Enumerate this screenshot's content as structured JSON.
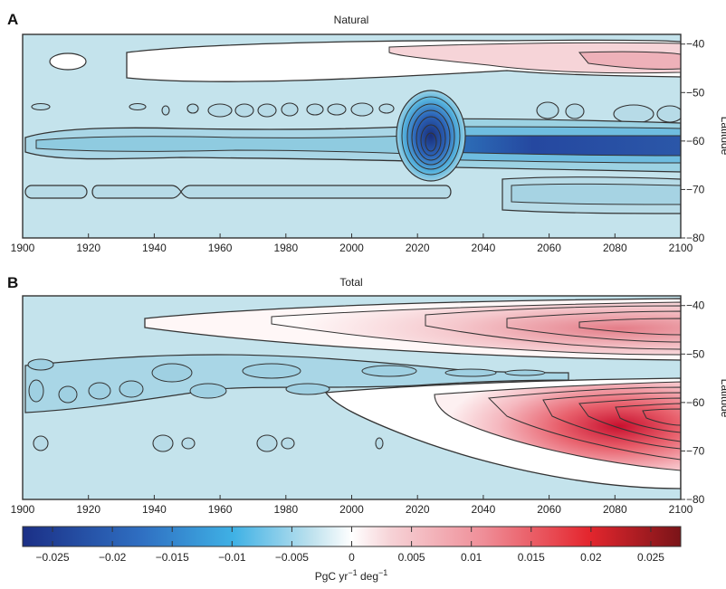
{
  "colors": {
    "background_blue": "#c4e3ec",
    "deep_blue": "#1f3a93",
    "mid_blue": "#3aa8dc",
    "white": "#ffffff",
    "light_red": "#f3c6cb",
    "deep_red": "#c8102e",
    "contour": "#333333"
  },
  "chart_data": [
    {
      "type": "heatmap",
      "panel_letter": "A",
      "title": "Natural",
      "x_ticks": [
        1900,
        1920,
        1940,
        1960,
        1980,
        2000,
        2020,
        2040,
        2060,
        2080,
        2100
      ],
      "y_ticks": [
        -40,
        -50,
        -60,
        -70,
        -80
      ],
      "ylabel": "Latitude",
      "xlim": [
        1900,
        2100
      ],
      "ylim": [
        -80,
        -38
      ],
      "features": [
        {
          "kind": "positive",
          "x": [
            1925,
            2100
          ],
          "y": [
            -41,
            -46
          ],
          "peak": 0.006
        },
        {
          "kind": "negative",
          "x": [
            2015,
            2032
          ],
          "y": [
            -55,
            -66
          ],
          "peak": -0.025
        },
        {
          "kind": "negative",
          "x": [
            2030,
            2100
          ],
          "y": [
            -61,
            -65
          ],
          "peak": -0.02
        },
        {
          "kind": "negative",
          "x": [
            1900,
            2100
          ],
          "y": [
            -58,
            -66
          ],
          "peak": -0.006
        },
        {
          "kind": "negative",
          "x": [
            1900,
            2005
          ],
          "y": [
            -68,
            -72
          ],
          "peak": -0.003
        },
        {
          "kind": "negative",
          "x": [
            2045,
            2100
          ],
          "y": [
            -67,
            -74
          ],
          "peak": -0.004
        }
      ]
    },
    {
      "type": "heatmap",
      "panel_letter": "B",
      "title": "Total",
      "x_ticks": [
        1900,
        1920,
        1940,
        1960,
        1980,
        2000,
        2020,
        2040,
        2060,
        2080,
        2100
      ],
      "y_ticks": [
        -40,
        -50,
        -60,
        -70,
        -80
      ],
      "ylabel": "Latitude",
      "xlim": [
        1900,
        2100
      ],
      "ylim": [
        -80,
        -38
      ],
      "features": [
        {
          "kind": "positive",
          "x": [
            1935,
            2100
          ],
          "y": [
            -41,
            -52
          ],
          "peak": 0.012
        },
        {
          "kind": "positive",
          "x": [
            1990,
            2100
          ],
          "y": [
            -58,
            -74
          ],
          "peak": 0.027
        },
        {
          "kind": "negative",
          "x": [
            1900,
            2060
          ],
          "y": [
            -53,
            -61
          ],
          "peak": -0.004
        }
      ]
    }
  ],
  "colorbar": {
    "ticks": [
      -0.025,
      -0.02,
      -0.015,
      -0.01,
      -0.005,
      0,
      0.005,
      0.01,
      0.015,
      0.02,
      0.025
    ],
    "tick_labels": [
      "−0.025",
      "−0.02",
      "−0.015",
      "−0.01",
      "−0.005",
      "0",
      "0.005",
      "0.01",
      "0.015",
      "0.02",
      "0.025"
    ],
    "range": [
      -0.0275,
      0.0275
    ],
    "unit_label": {
      "base": "PgC yr",
      "exp1": "−1",
      "mid": " deg",
      "exp2": "−1"
    }
  }
}
